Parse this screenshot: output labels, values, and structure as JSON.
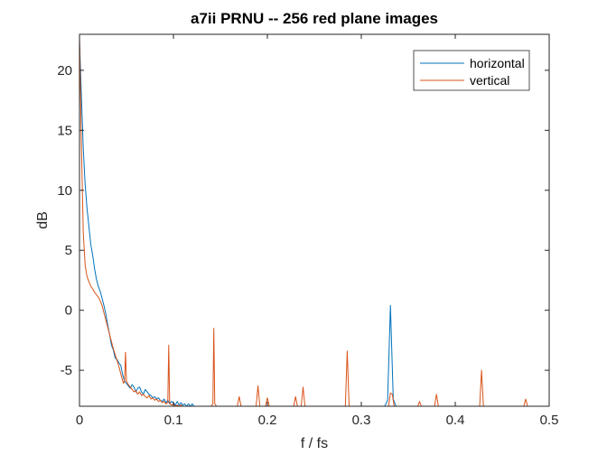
{
  "chart_data": {
    "type": "line",
    "title": "a7ii PRNU -- 256 red plane images",
    "xlabel": "f / fs",
    "ylabel": "dB",
    "xlim": [
      0,
      0.5
    ],
    "ylim": [
      -8,
      23
    ],
    "xticks": [
      0,
      0.1,
      0.2,
      0.3,
      0.4,
      0.5
    ],
    "xtick_labels": [
      "0",
      "0.1",
      "0.2",
      "0.3",
      "0.4",
      "0.5"
    ],
    "yticks": [
      -5,
      0,
      5,
      10,
      15,
      20
    ],
    "ytick_labels": [
      "-5",
      "0",
      "5",
      "10",
      "15",
      "20"
    ],
    "grid": false,
    "legend_position": "top-right",
    "series": [
      {
        "name": "horizontal",
        "color": "#0072BD",
        "points": [
          [
            0.0,
            22.5
          ],
          [
            0.002,
            18.0
          ],
          [
            0.004,
            13.5
          ],
          [
            0.006,
            10.5
          ],
          [
            0.008,
            8.5
          ],
          [
            0.01,
            7.0
          ],
          [
            0.012,
            5.5
          ],
          [
            0.014,
            4.6
          ],
          [
            0.016,
            3.5
          ],
          [
            0.018,
            2.6
          ],
          [
            0.02,
            2.0
          ],
          [
            0.022,
            1.6
          ],
          [
            0.024,
            1.0
          ],
          [
            0.026,
            0.4
          ],
          [
            0.028,
            -0.3
          ],
          [
            0.03,
            -1.2
          ],
          [
            0.032,
            -2.0
          ],
          [
            0.034,
            -2.9
          ],
          [
            0.036,
            -3.3
          ],
          [
            0.038,
            -4.0
          ],
          [
            0.04,
            -4.1
          ],
          [
            0.042,
            -4.4
          ],
          [
            0.044,
            -4.6
          ],
          [
            0.046,
            -5.4
          ],
          [
            0.048,
            -5.9
          ],
          [
            0.05,
            -6.1
          ],
          [
            0.052,
            -6.3
          ],
          [
            0.054,
            -6.5
          ],
          [
            0.056,
            -6.2
          ],
          [
            0.058,
            -6.4
          ],
          [
            0.06,
            -6.8
          ],
          [
            0.062,
            -6.5
          ],
          [
            0.064,
            -6.4
          ],
          [
            0.066,
            -6.8
          ],
          [
            0.068,
            -7.0
          ],
          [
            0.07,
            -6.6
          ],
          [
            0.072,
            -6.8
          ],
          [
            0.074,
            -7.0
          ],
          [
            0.076,
            -7.1
          ],
          [
            0.078,
            -7.3
          ],
          [
            0.08,
            -7.2
          ],
          [
            0.082,
            -7.4
          ],
          [
            0.084,
            -7.3
          ],
          [
            0.086,
            -7.5
          ],
          [
            0.088,
            -7.6
          ],
          [
            0.09,
            -7.4
          ],
          [
            0.092,
            -7.7
          ],
          [
            0.094,
            -7.5
          ],
          [
            0.096,
            -7.8
          ],
          [
            0.098,
            -7.6
          ],
          [
            0.1,
            -7.7
          ],
          [
            0.102,
            -7.9
          ],
          [
            0.104,
            -7.6
          ],
          [
            0.106,
            -7.9
          ],
          [
            0.108,
            -7.7
          ],
          [
            0.11,
            -7.9
          ],
          [
            0.112,
            -7.8
          ],
          [
            0.114,
            -8.0
          ],
          [
            0.116,
            -7.8
          ],
          [
            0.118,
            -8.0
          ],
          [
            0.12,
            -7.8
          ],
          [
            0.122,
            -8.0
          ],
          [
            0.126,
            -8.0
          ],
          [
            0.325,
            -8.0
          ],
          [
            0.328,
            -7.5
          ],
          [
            0.331,
            0.4
          ],
          [
            0.334,
            -7.4
          ],
          [
            0.337,
            -8.0
          ]
        ]
      },
      {
        "name": "vertical",
        "color": "#D95319",
        "points": [
          [
            0.0,
            23.0
          ],
          [
            0.002,
            14.0
          ],
          [
            0.004,
            6.5
          ],
          [
            0.006,
            3.8
          ],
          [
            0.008,
            2.8
          ],
          [
            0.01,
            2.4
          ],
          [
            0.012,
            2.0
          ],
          [
            0.014,
            1.8
          ],
          [
            0.016,
            1.5
          ],
          [
            0.018,
            1.3
          ],
          [
            0.02,
            1.1
          ],
          [
            0.022,
            0.8
          ],
          [
            0.024,
            0.4
          ],
          [
            0.026,
            -0.2
          ],
          [
            0.028,
            -0.8
          ],
          [
            0.03,
            -1.4
          ],
          [
            0.032,
            -2.0
          ],
          [
            0.034,
            -2.6
          ],
          [
            0.036,
            -3.2
          ],
          [
            0.038,
            -3.7
          ],
          [
            0.04,
            -4.2
          ],
          [
            0.042,
            -4.7
          ],
          [
            0.044,
            -5.3
          ],
          [
            0.046,
            -5.9
          ],
          [
            0.047,
            -6.1
          ],
          [
            0.048,
            -5.8
          ],
          [
            0.049,
            -3.5
          ],
          [
            0.05,
            -5.9
          ],
          [
            0.052,
            -6.2
          ],
          [
            0.054,
            -6.4
          ],
          [
            0.056,
            -6.6
          ],
          [
            0.058,
            -6.8
          ],
          [
            0.06,
            -6.7
          ],
          [
            0.062,
            -7.0
          ],
          [
            0.064,
            -6.8
          ],
          [
            0.066,
            -7.1
          ],
          [
            0.068,
            -7.0
          ],
          [
            0.07,
            -7.2
          ],
          [
            0.072,
            -7.3
          ],
          [
            0.074,
            -7.1
          ],
          [
            0.076,
            -7.4
          ],
          [
            0.078,
            -7.3
          ],
          [
            0.08,
            -7.5
          ],
          [
            0.082,
            -7.4
          ],
          [
            0.084,
            -7.6
          ],
          [
            0.086,
            -7.5
          ],
          [
            0.088,
            -7.7
          ],
          [
            0.09,
            -7.6
          ],
          [
            0.092,
            -7.8
          ],
          [
            0.094,
            -7.7
          ],
          [
            0.095,
            -2.9
          ],
          [
            0.096,
            -7.8
          ],
          [
            0.098,
            -7.9
          ],
          [
            0.1,
            -7.8
          ],
          [
            0.102,
            -8.0
          ],
          [
            0.104,
            -7.9
          ],
          [
            0.106,
            -8.0
          ],
          [
            0.108,
            -7.9
          ],
          [
            0.11,
            -8.0
          ],
          [
            0.14,
            -8.0
          ],
          [
            0.142,
            -7.8
          ],
          [
            0.143,
            -1.5
          ],
          [
            0.144,
            -7.8
          ],
          [
            0.146,
            -8.0
          ],
          [
            0.168,
            -8.0
          ],
          [
            0.17,
            -7.2
          ],
          [
            0.172,
            -8.0
          ],
          [
            0.188,
            -8.0
          ],
          [
            0.19,
            -6.3
          ],
          [
            0.192,
            -8.0
          ],
          [
            0.198,
            -8.0
          ],
          [
            0.2,
            -7.3
          ],
          [
            0.202,
            -8.0
          ],
          [
            0.228,
            -8.0
          ],
          [
            0.23,
            -7.2
          ],
          [
            0.232,
            -8.0
          ],
          [
            0.236,
            -8.0
          ],
          [
            0.238,
            -6.4
          ],
          [
            0.24,
            -8.0
          ],
          [
            0.283,
            -8.0
          ],
          [
            0.285,
            -3.4
          ],
          [
            0.287,
            -8.0
          ],
          [
            0.329,
            -8.0
          ],
          [
            0.331,
            -6.9
          ],
          [
            0.333,
            -7.0
          ],
          [
            0.335,
            -8.0
          ],
          [
            0.36,
            -8.0
          ],
          [
            0.362,
            -7.6
          ],
          [
            0.364,
            -8.0
          ],
          [
            0.378,
            -8.0
          ],
          [
            0.38,
            -7.0
          ],
          [
            0.382,
            -8.0
          ],
          [
            0.426,
            -8.0
          ],
          [
            0.428,
            -5.0
          ],
          [
            0.43,
            -8.0
          ],
          [
            0.473,
            -8.0
          ],
          [
            0.475,
            -7.4
          ],
          [
            0.477,
            -8.0
          ],
          [
            0.5,
            -8.0
          ]
        ]
      }
    ]
  }
}
